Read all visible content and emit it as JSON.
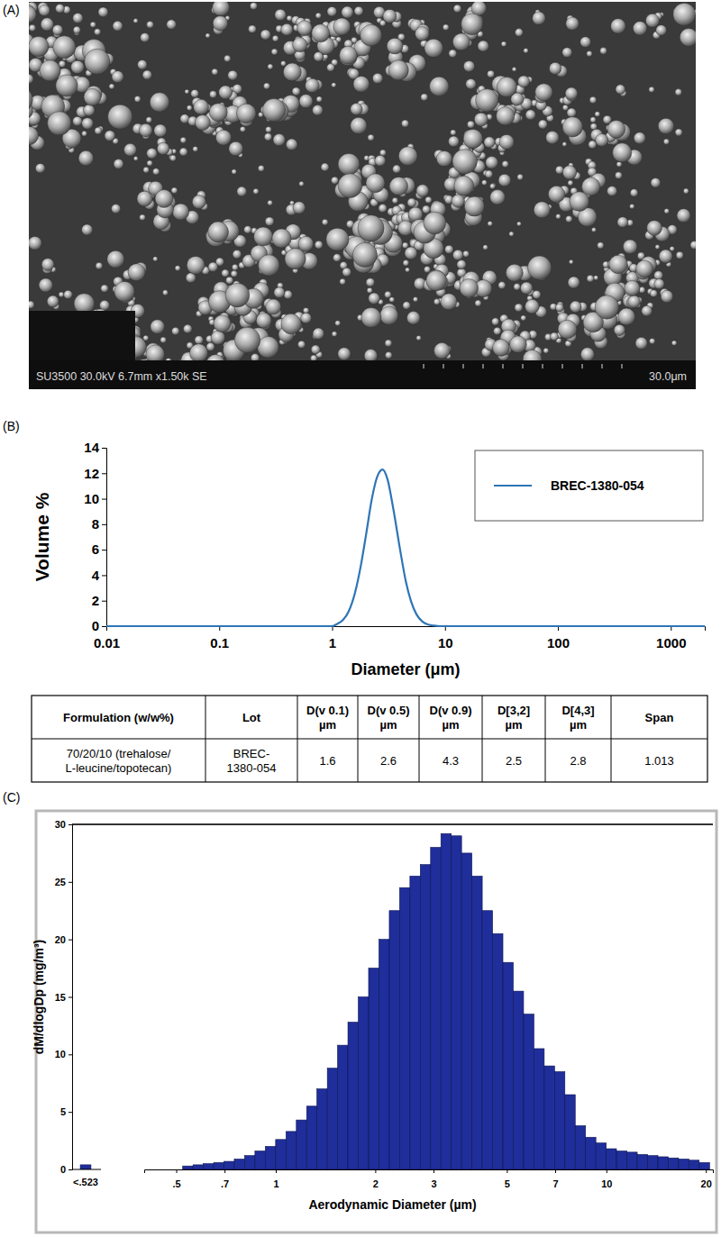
{
  "panel_labels": [
    "(A)",
    "(B)",
    "(C)"
  ],
  "image": {
    "info": "SU3500 30.0kV 6.7mm x1.50k SE",
    "scale_bar": "30.0μm"
  },
  "chart_data": [
    {
      "type": "line",
      "x_label": "Diameter (μm)",
      "y_label": "Volume %",
      "log": "x",
      "xlim": [
        0.01,
        2000
      ],
      "xticks": [
        0.01,
        0.1,
        1,
        10,
        100,
        1000
      ],
      "ylim": [
        0,
        14
      ],
      "yticks": [
        0,
        2,
        4,
        6,
        8,
        10,
        12,
        14
      ],
      "legend": "top-right",
      "x": [
        0.01,
        1,
        1.1,
        1.25,
        1.4,
        1.6,
        1.8,
        2.0,
        2.25,
        2.5,
        2.8,
        3.1,
        3.5,
        4.0,
        4.5,
        5.0,
        5.6,
        6.3,
        7.1,
        8.0,
        9.0,
        10,
        2000
      ],
      "series": [
        {
          "name": "BREC-1380-054",
          "color": "#2e75b6",
          "values": [
            0,
            0,
            0.16,
            0.49,
            1.15,
            2.67,
            4.8,
            7.2,
            10.0,
            11.7,
            12.3,
            11.5,
            9.1,
            6.0,
            3.5,
            1.95,
            0.91,
            0.36,
            0.12,
            0.04,
            0,
            0,
            0
          ]
        }
      ]
    },
    {
      "type": "histogram",
      "x_label": "Aerodynamic Diameter (µm)",
      "y_label": "dM/dlogDp (mg/m³)",
      "log": "x",
      "xlim": [
        0.4,
        21
      ],
      "xticks": [
        {
          "value": 0.5,
          "label": ".5"
        },
        {
          "value": 0.7,
          "label": ".7"
        },
        1,
        2,
        3,
        5,
        7,
        10,
        20
      ],
      "ylim": [
        0,
        30
      ],
      "yticks": [
        0,
        5,
        10,
        15,
        20,
        25,
        30
      ],
      "color": "#1f2e9a",
      "undersize": {
        "label": "<.523",
        "value": 0.4
      },
      "bins": [
        0.523,
        0.562,
        0.604,
        0.649,
        0.697,
        0.749,
        0.805,
        0.865,
        0.93,
        0.999,
        1.074,
        1.154,
        1.24,
        1.332,
        1.432,
        1.538,
        1.653,
        1.777,
        1.909,
        2.052,
        2.205,
        2.369,
        2.546,
        2.736,
        2.94,
        3.159,
        3.395,
        3.648,
        3.92,
        4.213,
        4.527,
        4.865,
        5.228,
        5.618,
        6.037,
        6.487,
        6.971,
        7.491,
        8.05,
        8.651,
        9.296,
        9.99,
        10.73,
        11.54,
        12.4,
        13.32,
        14.32,
        15.38,
        16.53,
        17.77,
        19.09,
        20.52
      ],
      "counts": [
        0.3,
        0.4,
        0.5,
        0.6,
        0.7,
        0.9,
        1.2,
        1.6,
        2.0,
        2.6,
        3.3,
        4.3,
        5.5,
        7.0,
        8.8,
        10.8,
        12.8,
        15.0,
        17.5,
        20.0,
        22.5,
        24.5,
        25.5,
        26.5,
        28.0,
        29.2,
        29.0,
        27.5,
        25.5,
        22.5,
        20.5,
        18.0,
        15.5,
        13.5,
        10.5,
        9.0,
        8.5,
        6.5,
        3.8,
        2.8,
        2.3,
        1.8,
        1.6,
        1.5,
        1.3,
        1.2,
        1.1,
        1.0,
        0.9,
        0.8,
        0.6
      ]
    }
  ],
  "table": {
    "header": [
      [
        "Formulation (w/w%)"
      ],
      [
        "Lot"
      ],
      [
        "D(v 0.1)",
        "µm"
      ],
      [
        "D(v 0.5)",
        "µm"
      ],
      [
        "D(v 0.9)",
        "µm"
      ],
      [
        "D[3,2]",
        "µm"
      ],
      [
        "D[4,3]",
        "µm"
      ],
      [
        "Span"
      ]
    ],
    "rows": [
      [
        [
          "70/20/10 (trehalose/",
          "L-leucine/topotecan)"
        ],
        [
          "BREC-",
          "1380-054"
        ],
        [
          "1.6"
        ],
        [
          "2.6"
        ],
        [
          "4.3"
        ],
        [
          "2.5"
        ],
        [
          "2.8"
        ],
        [
          "1.013"
        ]
      ]
    ]
  }
}
